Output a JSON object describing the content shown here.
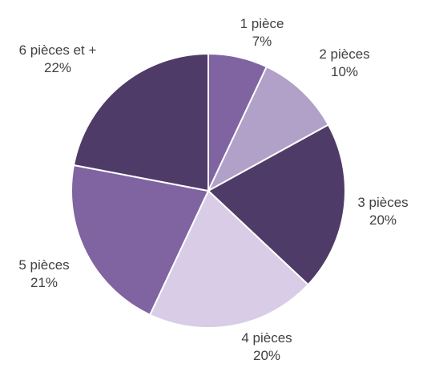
{
  "chart_data": {
    "type": "pie",
    "start": "12 o'clock",
    "direction": "clockwise",
    "slices": [
      {
        "label": "1 pièce",
        "value_label": "7%",
        "value": 7,
        "color": "#8064A2"
      },
      {
        "label": "2 pièces",
        "value_label": "10%",
        "value": 10,
        "color": "#B1A0C7"
      },
      {
        "label": "3 pièces",
        "value_label": "20%",
        "value": 20,
        "color": "#4F3B67"
      },
      {
        "label": "4 pièces",
        "value_label": "20%",
        "value": 20,
        "color": "#D9CCE6"
      },
      {
        "label": "5 pièces",
        "value_label": "21%",
        "value": 21,
        "color": "#8064A2"
      },
      {
        "label": "6 pièces et +",
        "value_label": "22%",
        "value": 22,
        "color": "#4F3B67"
      }
    ]
  }
}
